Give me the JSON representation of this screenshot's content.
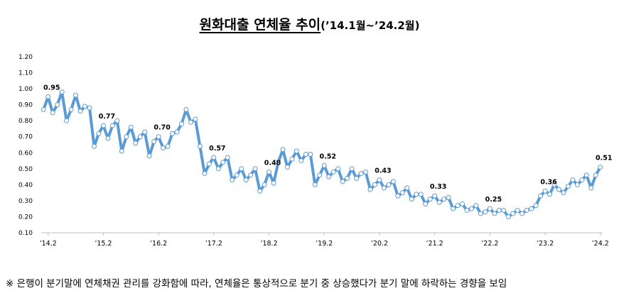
{
  "title": {
    "main": "원화대출 연체율 추이",
    "range": "(’14.1월~’24.2월)"
  },
  "footnote": "※ 은행이 분기말에 연체채권 관리를 강화함에 따라, 연체율은 통상적으로 분기 중 상승했다가 분기 말에 하락하는 경향을 보임",
  "colors": {
    "line": "#5b9bd5",
    "marker_fill": "#ffffff",
    "marker_stroke": "#5b9bd5",
    "grid": "#d9d9d9",
    "axis": "#bfbfbf"
  },
  "chart_data": {
    "type": "line",
    "title": "",
    "xlabel": "",
    "ylabel": "",
    "ylim": [
      0.1,
      1.2
    ],
    "yticks": [
      "0.10",
      "0.20",
      "0.30",
      "0.40",
      "0.50",
      "0.60",
      "0.70",
      "0.80",
      "0.90",
      "1.00",
      "1.10",
      "1.20"
    ],
    "grid": false,
    "x_tick_labels": [
      "’14.2",
      "’15.2",
      "’16.2",
      "’17.2",
      "’18.2",
      "’19.2",
      "’20.2",
      "’21.2",
      "’22.2",
      "’23.2",
      "’24.2"
    ],
    "x_tick_months": [
      "2014-02",
      "2015-02",
      "2016-02",
      "2017-02",
      "2018-02",
      "2019-02",
      "2020-02",
      "2021-02",
      "2022-02",
      "2023-02",
      "2024-02"
    ],
    "x_start": "2014-01",
    "series": [
      {
        "values": [
          0.87,
          0.95,
          0.85,
          0.9,
          0.98,
          0.8,
          0.87,
          0.96,
          0.86,
          0.89,
          0.88,
          0.64,
          0.72,
          0.77,
          0.69,
          0.77,
          0.8,
          0.61,
          0.7,
          0.76,
          0.66,
          0.7,
          0.73,
          0.58,
          0.67,
          0.7,
          0.63,
          0.64,
          0.72,
          0.73,
          0.78,
          0.87,
          0.79,
          0.81,
          0.64,
          0.47,
          0.53,
          0.57,
          0.5,
          0.54,
          0.57,
          0.43,
          0.46,
          0.5,
          0.43,
          0.46,
          0.5,
          0.36,
          0.4,
          0.48,
          0.41,
          0.54,
          0.62,
          0.51,
          0.56,
          0.61,
          0.55,
          0.59,
          0.59,
          0.4,
          0.46,
          0.52,
          0.45,
          0.48,
          0.5,
          0.42,
          0.44,
          0.5,
          0.44,
          0.47,
          0.48,
          0.37,
          0.4,
          0.43,
          0.38,
          0.4,
          0.42,
          0.33,
          0.35,
          0.38,
          0.31,
          0.34,
          0.34,
          0.28,
          0.31,
          0.33,
          0.29,
          0.31,
          0.32,
          0.25,
          0.27,
          0.28,
          0.24,
          0.25,
          0.27,
          0.22,
          0.23,
          0.25,
          0.22,
          0.24,
          0.24,
          0.2,
          0.22,
          0.24,
          0.22,
          0.24,
          0.25,
          0.27,
          0.33,
          0.36,
          0.34,
          0.4,
          0.37,
          0.35,
          0.39,
          0.43,
          0.4,
          0.43,
          0.46,
          0.38,
          0.46,
          0.51
        ]
      }
    ],
    "data_labels": [
      {
        "month": "2014-02",
        "text": "0.95"
      },
      {
        "month": "2015-02",
        "text": "0.77"
      },
      {
        "month": "2016-02",
        "text": "0.70"
      },
      {
        "month": "2017-02",
        "text": "0.57"
      },
      {
        "month": "2018-02",
        "text": "0.48"
      },
      {
        "month": "2019-02",
        "text": "0.52"
      },
      {
        "month": "2020-02",
        "text": "0.43"
      },
      {
        "month": "2021-02",
        "text": "0.33"
      },
      {
        "month": "2022-02",
        "text": "0.25"
      },
      {
        "month": "2023-02",
        "text": "0.36"
      },
      {
        "month": "2024-02",
        "text": "0.51"
      }
    ]
  }
}
